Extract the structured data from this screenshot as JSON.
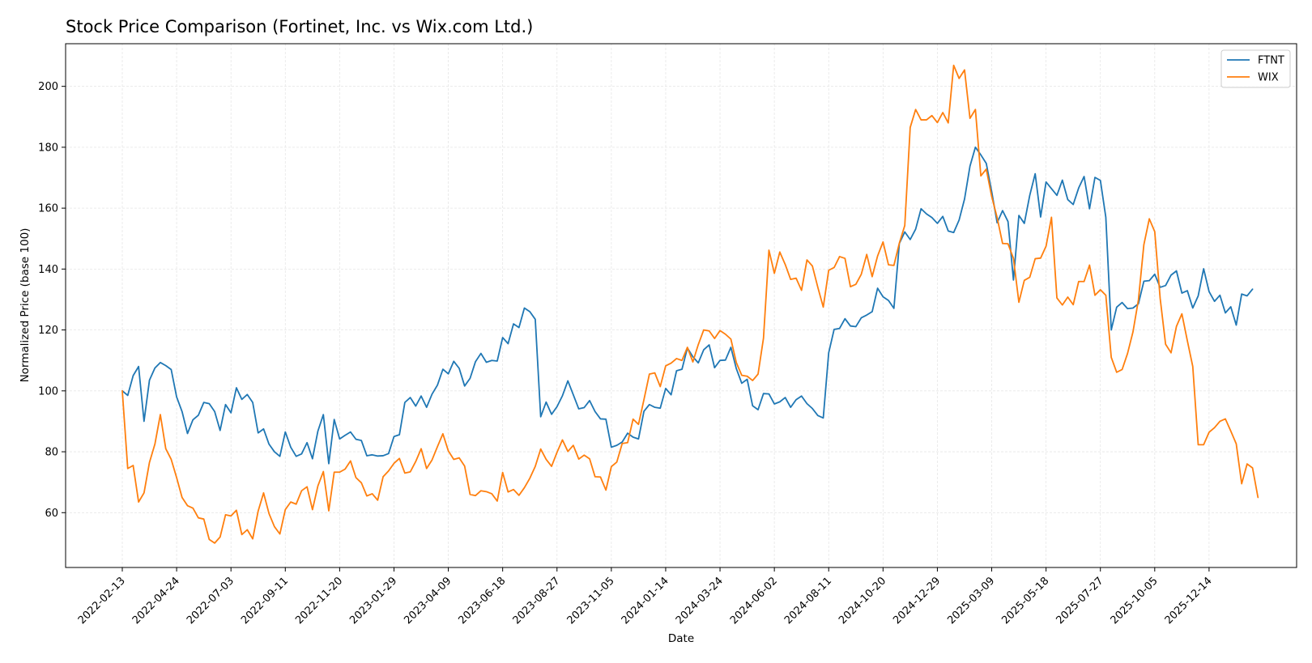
{
  "chart_data": {
    "type": "line",
    "title": "Stock Price Comparison (Fortinet, Inc. vs Wix.com Ltd.)",
    "xlabel": "Date",
    "ylabel": "Normalized Price (base 100)",
    "ylim": [
      42,
      214
    ],
    "yticks": [
      60,
      80,
      100,
      120,
      140,
      160,
      180,
      200
    ],
    "xticks": [
      "2022-02-13",
      "2022-04-24",
      "2022-07-03",
      "2022-09-11",
      "2022-11-20",
      "2023-01-29",
      "2023-04-09",
      "2023-06-18",
      "2023-08-27",
      "2023-11-05",
      "2024-01-14",
      "2024-03-24",
      "2024-06-02",
      "2024-08-11",
      "2024-10-20",
      "2024-12-29",
      "2025-03-09",
      "2025-05-18",
      "2025-07-27",
      "2025-10-05",
      "2025-12-14"
    ],
    "x_start": "2022-02-13",
    "x_step_days": 7,
    "grid": true,
    "legend_position": "top-right",
    "series": [
      {
        "name": "FTNT",
        "color": "#1f77b4",
        "values": [
          100,
          98.5,
          105,
          108,
          90,
          103.5,
          107.5,
          109.3,
          108.3,
          107,
          98,
          93.2,
          86,
          90.5,
          92,
          96.2,
          95.8,
          93.2,
          87,
          95.5,
          92.8,
          101,
          97.2,
          98.8,
          96.2,
          86.2,
          87.5,
          82.5,
          80,
          78.5,
          86.5,
          81.5,
          78.5,
          79.3,
          83,
          77.7,
          86.8,
          92.2,
          76.1,
          90.6,
          84.2,
          85.4,
          86.5,
          84.1,
          83.7,
          78.7,
          79,
          78.6,
          78.7,
          79.4,
          85,
          85.6,
          96.2,
          97.8,
          95,
          98.3,
          94.6,
          98.9,
          101.9,
          107.1,
          105.6,
          109.7,
          107.4,
          101.6,
          104.1,
          109.6,
          112.3,
          109.4,
          110,
          109.8,
          117.5,
          115.5,
          122,
          120.8,
          127.2,
          126,
          123.5,
          91.5,
          96.3,
          92.3,
          94.8,
          98.4,
          103.3,
          98.7,
          94.1,
          94.5,
          96.8,
          93.2,
          90.8,
          90.7,
          81.5,
          82.1,
          83.2,
          86.1,
          84.8,
          84.2,
          93.3,
          95.5,
          94.6,
          94.3,
          100.8,
          98.7,
          106.6,
          107.1,
          114.1,
          111.2,
          109.2,
          113.5,
          115.1,
          107.6,
          110,
          110.1,
          114.3,
          107.3,
          102.5,
          103.8,
          95.1,
          93.8,
          99.1,
          99,
          95.7,
          96.4,
          97.8,
          94.6,
          97.1,
          98.3,
          95.8,
          94.2,
          91.9,
          91.1,
          112.5,
          120.2,
          120.5,
          123.7,
          121.3,
          121.1,
          124,
          124.9,
          126,
          133.7,
          130.9,
          129.7,
          127.1,
          148.4,
          152.2,
          149.7,
          153.1,
          159.8,
          158.1,
          156.9,
          155,
          157.3,
          152.5,
          152,
          156.1,
          163,
          173.8,
          180,
          177.5,
          174.7,
          165.4,
          155.2,
          159.2,
          155.6,
          136.4,
          157.6,
          155,
          164.2,
          171.3,
          157.1,
          168.6,
          166.4,
          164.2,
          169.2,
          162.8,
          161.2,
          166.6,
          170.4,
          159.8,
          170.1,
          169.1,
          157,
          120,
          127.5,
          129,
          127,
          127.2,
          128.6,
          136,
          136.2,
          138.3,
          134,
          134.6,
          138,
          139.4,
          132.1,
          132.9,
          127.2,
          131.2,
          140.1,
          132.6,
          129.4,
          131.4,
          125.6,
          127.6,
          121.6,
          131.8,
          131.2,
          133.4
        ]
      },
      {
        "name": "WIX",
        "color": "#ff7f0e",
        "values": [
          100,
          74.5,
          75.5,
          63.5,
          66.5,
          76.5,
          82.5,
          92.2,
          81,
          77.5,
          71.5,
          65,
          62.3,
          61.5,
          58.3,
          57.9,
          51.2,
          50,
          52,
          59.3,
          58.9,
          60.8,
          52.8,
          54.4,
          51.4,
          60.5,
          66.5,
          59.7,
          55.4,
          53,
          61,
          63.5,
          62.8,
          67.2,
          68.5,
          61,
          68.8,
          73.5,
          60.6,
          73.3,
          73.3,
          74.3,
          77,
          71.5,
          69.8,
          65.5,
          66.2,
          64.1,
          71.8,
          73.7,
          76.2,
          77.8,
          73,
          73.4,
          76.8,
          81,
          74.5,
          77.3,
          81.7,
          85.9,
          80.3,
          77.5,
          78,
          75.3,
          66,
          65.6,
          67.2,
          66.9,
          66.2,
          63.8,
          73.2,
          66.8,
          67.6,
          65.7,
          68.2,
          71.3,
          75.2,
          80.9,
          77.5,
          75.2,
          79.8,
          83.9,
          80.1,
          82.1,
          77.6,
          78.9,
          77.7,
          71.8,
          71.7,
          67.4,
          75.1,
          76.6,
          82.7,
          83,
          90.7,
          89,
          97.1,
          105.5,
          105.9,
          101.4,
          108.2,
          109.1,
          110.6,
          110,
          114.3,
          109.5,
          115.2,
          120,
          119.7,
          117.2,
          119.8,
          118.6,
          117,
          109.3,
          105.1,
          104.8,
          103.4,
          105.5,
          117.3,
          146.2,
          138.6,
          145.6,
          141.5,
          136.6,
          137,
          133,
          143,
          141,
          134,
          127.5,
          139.6,
          140.5,
          144.1,
          143.5,
          134.2,
          135,
          138.3,
          144.8,
          137.5,
          144.3,
          148.9,
          141.4,
          141.2,
          148.5,
          154.3,
          186.5,
          192.4,
          189,
          189,
          190.4,
          188.1,
          191.4,
          188,
          206.9,
          202.6,
          205.4,
          189.5,
          192.4,
          170.6,
          172.8,
          163.8,
          156.9,
          148.4,
          148.3,
          143.5,
          129.1,
          136.3,
          137.3,
          143.4,
          143.6,
          147.5,
          157,
          130.5,
          128.2,
          130.8,
          128.3,
          135.9,
          135.9,
          141.3,
          131.4,
          133.2,
          131.4,
          111,
          106.1,
          107,
          112.3,
          119.4,
          129.9,
          148,
          156.5,
          152.3,
          130.4,
          115.3,
          112.5,
          121.2,
          125.3,
          116.5,
          108,
          82.3,
          82.3,
          86.4,
          87.9,
          90,
          90.8,
          86.8,
          82.6,
          69.5,
          76,
          74.7,
          65
        ]
      }
    ]
  }
}
